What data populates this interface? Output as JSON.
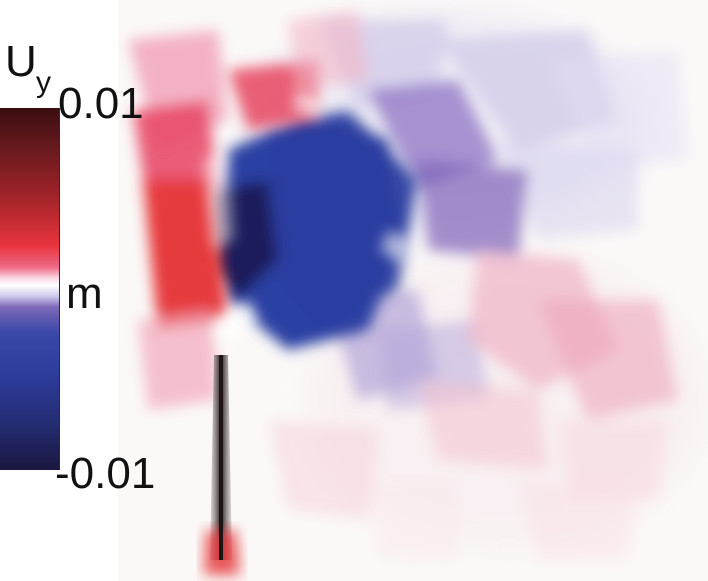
{
  "colorbar": {
    "quantity": "U",
    "subscript": "y",
    "max_label": "0.01",
    "unit": "m",
    "min_label": "-0.01",
    "max_value": 0.01,
    "min_value": -0.01
  },
  "colors": {
    "positive_max": "#3a0d10",
    "positive_high": "#8a1c24",
    "positive_mid": "#e8343d",
    "positive_low": "#f3a2b5",
    "zero": "#ffffff",
    "negative_low": "#7d68b8",
    "negative_mid": "#2f43a3",
    "negative_max": "#1a1740"
  }
}
